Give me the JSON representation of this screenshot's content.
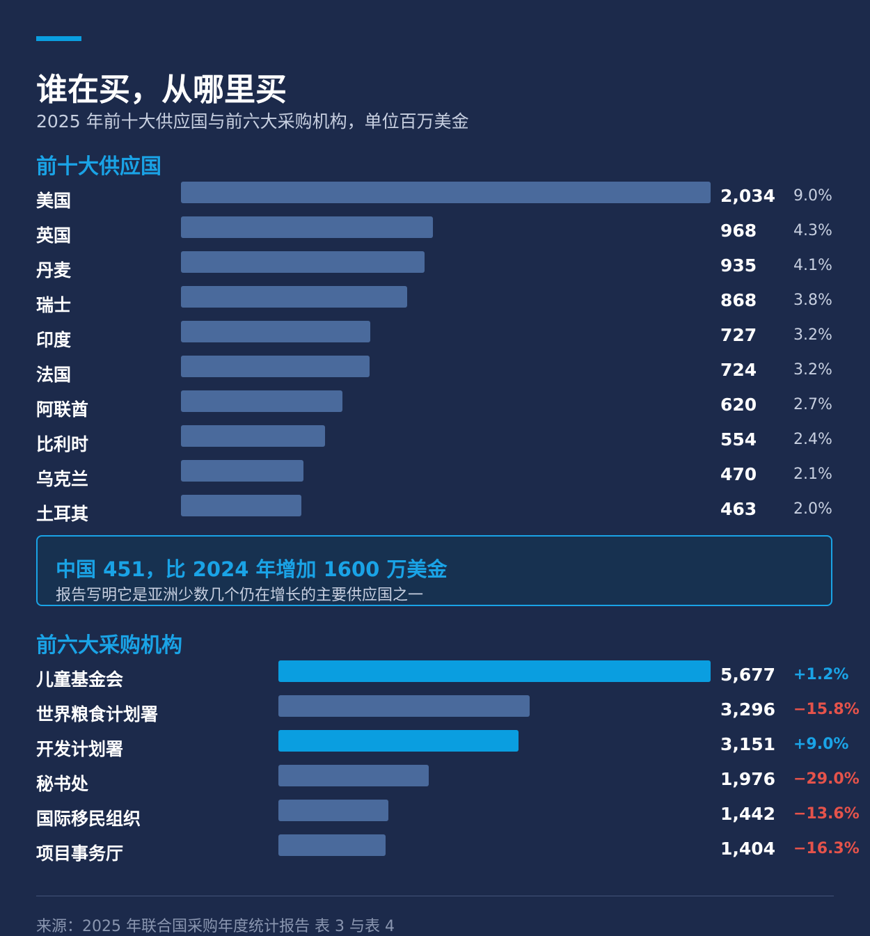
{
  "colors": {
    "background": "#1c2a4b",
    "bar": "#4a6a9c",
    "bar_highlight": "#0a9ee0",
    "accent": "#1aa3e6",
    "positive": "#1aa3e6",
    "negative": "#e5534b"
  },
  "header": {
    "title": "谁在买，从哪里买",
    "subtitle": "2025 年前十大供应国与前六大采购机构，单位百万美金"
  },
  "callout": {
    "headline": "中国 451，比 2024 年增加 1600 万美金",
    "body": "报告写明它是亚洲少数几个仍在增长的主要供应国之一"
  },
  "footer": {
    "source": "来源：2025 年联合国采购年度统计报告 表 3 与表 4"
  },
  "chart_data": [
    {
      "type": "bar",
      "orientation": "horizontal",
      "title": "前十大供应国",
      "categories": [
        "美国",
        "英国",
        "丹麦",
        "瑞士",
        "印度",
        "法国",
        "阿联酋",
        "比利时",
        "乌克兰",
        "土耳其"
      ],
      "values": [
        2034,
        968,
        935,
        868,
        727,
        724,
        620,
        554,
        470,
        463
      ],
      "value_labels": [
        "2,034",
        "968",
        "935",
        "868",
        "727",
        "724",
        "620",
        "554",
        "470",
        "463"
      ],
      "shares": [
        "9.0%",
        "4.3%",
        "4.1%",
        "3.8%",
        "3.2%",
        "3.2%",
        "2.7%",
        "2.4%",
        "2.1%",
        "2.0%"
      ],
      "xlim": [
        0,
        2034
      ],
      "grid": false
    },
    {
      "type": "bar",
      "orientation": "horizontal",
      "title": "前六大采购机构",
      "categories": [
        "儿童基金会",
        "世界粮食计划署",
        "开发计划署",
        "秘书处",
        "国际移民组织",
        "项目事务厅"
      ],
      "values": [
        5677,
        3296,
        3151,
        1976,
        1442,
        1404
      ],
      "value_labels": [
        "5,677",
        "3,296",
        "3,151",
        "1,976",
        "1,442",
        "1,404"
      ],
      "changes": [
        "+1.2%",
        "−15.8%",
        "+9.0%",
        "−29.0%",
        "−13.6%",
        "−16.3%"
      ],
      "change_direction": [
        "up",
        "down",
        "up",
        "down",
        "down",
        "down"
      ],
      "xlim": [
        0,
        5677
      ],
      "grid": false
    }
  ]
}
